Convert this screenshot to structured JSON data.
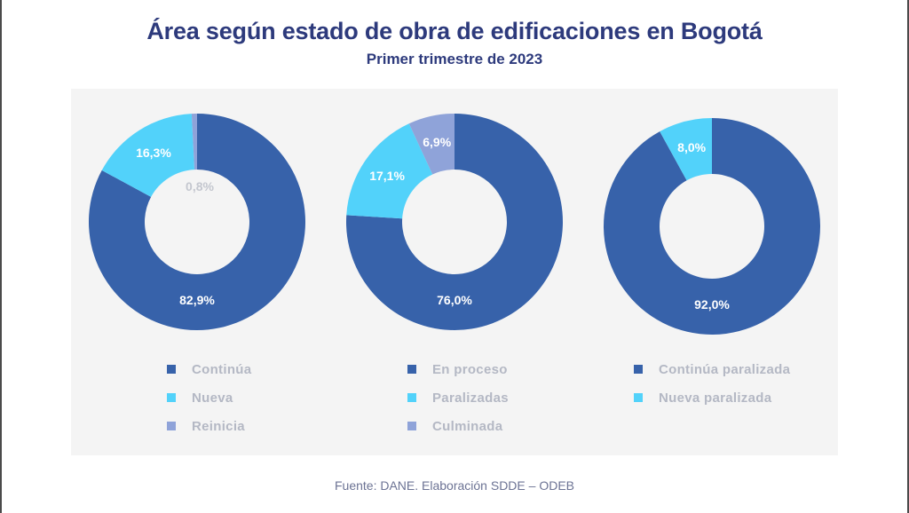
{
  "title": "Área según estado de obra de edificaciones en Bogotá",
  "subtitle": "Primer trimestre de 2023",
  "source": "Fuente: DANE. Elaboración SDDE – ODEB",
  "colors": {
    "dark_blue": "#3762aa",
    "cyan": "#52d2fa",
    "lavender": "#8fa3d9",
    "panel_bg": "#f4f4f4",
    "title": "#2d3a7c"
  },
  "chart_data": [
    {
      "type": "pie",
      "variant": "donut",
      "slices": [
        {
          "label": "Continúa",
          "value": 82.9,
          "display": "82,9%",
          "color": "#3762aa",
          "label_color": "#ffffff"
        },
        {
          "label": "Nueva",
          "value": 16.3,
          "display": "16,3%",
          "color": "#52d2fa",
          "label_color": "#ffffff"
        },
        {
          "label": "Reinicia",
          "value": 0.8,
          "display": "0,8%",
          "color": "#8fa3d9",
          "label_color": "#c4c7cf"
        }
      ],
      "legend": [
        "Continúa",
        "Nueva",
        "Reinicia"
      ]
    },
    {
      "type": "pie",
      "variant": "donut",
      "slices": [
        {
          "label": "En proceso",
          "value": 76.0,
          "display": "76,0%",
          "color": "#3762aa",
          "label_color": "#ffffff"
        },
        {
          "label": "Paralizadas",
          "value": 17.1,
          "display": "17,1%",
          "color": "#52d2fa",
          "label_color": "#ffffff"
        },
        {
          "label": "Culminada",
          "value": 6.9,
          "display": "6,9%",
          "color": "#8fa3d9",
          "label_color": "#ffffff"
        }
      ],
      "legend": [
        "En proceso",
        "Paralizadas",
        "Culminada"
      ]
    },
    {
      "type": "pie",
      "variant": "donut",
      "slices": [
        {
          "label": "Continúa paralizada",
          "value": 92.0,
          "display": "92,0%",
          "color": "#3762aa",
          "label_color": "#ffffff"
        },
        {
          "label": "Nueva paralizada",
          "value": 8.0,
          "display": "8,0%",
          "color": "#52d2fa",
          "label_color": "#ffffff"
        }
      ],
      "legend": [
        "Continúa paralizada",
        "Nueva paralizada"
      ]
    }
  ]
}
